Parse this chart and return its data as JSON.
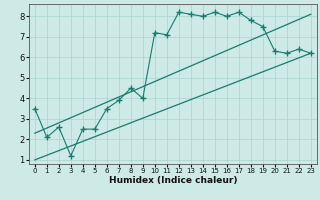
{
  "xlabel": "Humidex (Indice chaleur)",
  "ylabel": "",
  "bg_color": "#cdeae7",
  "line_color": "#1a7a6e",
  "grid_color": "#aad4cf",
  "xlim": [
    -0.5,
    23.5
  ],
  "ylim": [
    0.8,
    8.6
  ],
  "xticks": [
    0,
    1,
    2,
    3,
    4,
    5,
    6,
    7,
    8,
    9,
    10,
    11,
    12,
    13,
    14,
    15,
    16,
    17,
    18,
    19,
    20,
    21,
    22,
    23
  ],
  "yticks": [
    1,
    2,
    3,
    4,
    5,
    6,
    7,
    8
  ],
  "zigzag_x": [
    0,
    1,
    2,
    3,
    4,
    5,
    6,
    7,
    8,
    9,
    10,
    11,
    12,
    13,
    14,
    15,
    16,
    17,
    18,
    19,
    20,
    21,
    22,
    23
  ],
  "zigzag_y": [
    3.5,
    2.1,
    2.6,
    1.2,
    2.5,
    2.5,
    3.5,
    3.9,
    4.5,
    4.0,
    7.2,
    7.1,
    8.2,
    8.1,
    8.0,
    8.2,
    8.0,
    8.2,
    7.8,
    7.5,
    6.3,
    6.2,
    6.4,
    6.2
  ],
  "line1_x": [
    0,
    23
  ],
  "line1_y": [
    2.3,
    8.1
  ],
  "line2_x": [
    0,
    23
  ],
  "line2_y": [
    1.0,
    6.2
  ]
}
